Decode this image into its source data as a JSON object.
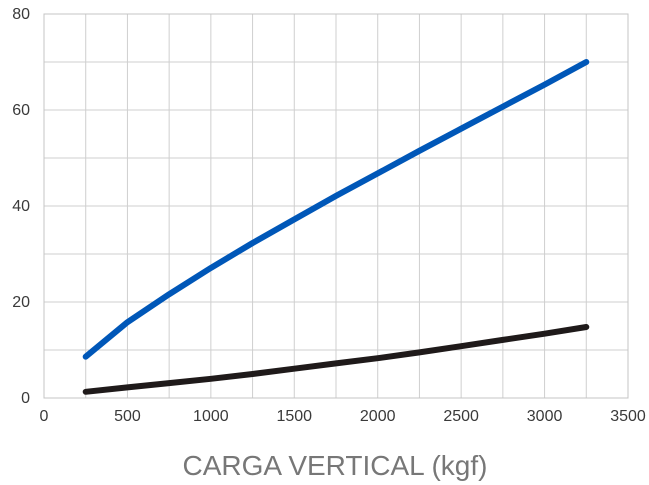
{
  "chart_data": {
    "type": "line",
    "title": "",
    "xlabel": "CARGA VERTICAL (kgf)",
    "ylabel": "",
    "xlim": [
      0,
      3500
    ],
    "ylim": [
      0,
      80
    ],
    "x_ticks": [
      0,
      500,
      1000,
      1500,
      2000,
      2500,
      3000,
      3500
    ],
    "y_ticks": [
      0,
      20,
      40,
      60,
      80
    ],
    "x_ticks_text": [
      "0",
      "500",
      "1000",
      "1500",
      "2000",
      "2500",
      "3000",
      "3500"
    ],
    "y_ticks_text": [
      "0",
      "20",
      "40",
      "60",
      "80"
    ],
    "grid": true,
    "legend": "none",
    "series": [
      {
        "color": "#0057b8",
        "x": [
          250,
          500,
          750,
          1000,
          1250,
          1500,
          1750,
          2000,
          2250,
          2500,
          2750,
          3000,
          3250
        ],
        "y": [
          8.6,
          15.8,
          21.6,
          27.1,
          32.3,
          37.2,
          42.1,
          46.8,
          51.5,
          56.1,
          60.7,
          65.3,
          70.0
        ]
      },
      {
        "color": "#1f1a1a",
        "x": [
          250,
          500,
          750,
          1000,
          1250,
          1500,
          1750,
          2000,
          2250,
          2500,
          2750,
          3000,
          3250
        ],
        "y": [
          1.3,
          2.2,
          3.1,
          4.0,
          5.0,
          6.1,
          7.2,
          8.3,
          9.5,
          10.8,
          12.1,
          13.4,
          14.8
        ]
      }
    ]
  }
}
